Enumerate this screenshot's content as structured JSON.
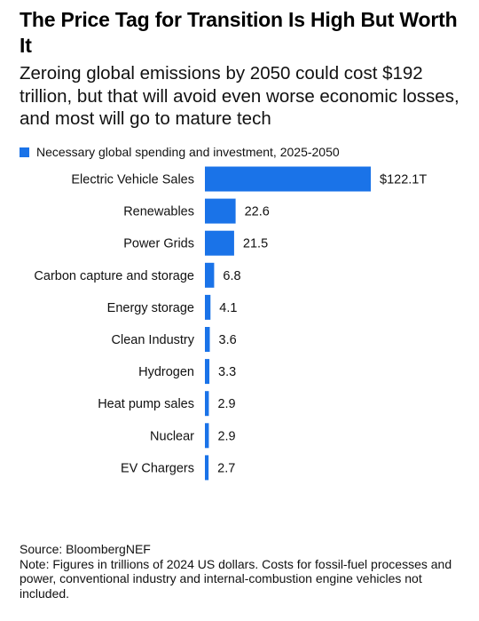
{
  "title": "The Price Tag for Transition Is High But Worth It",
  "subtitle": "Zeroing global emissions by 2050 could cost $192 trillion, but that will avoid even worse economic losses, and most will go to mature tech",
  "legend": {
    "label": "Necessary global spending and investment, 2025-2050",
    "color": "#1a73e8"
  },
  "colors": {
    "bar": "#1a73e8"
  },
  "chart_data": {
    "type": "bar",
    "orientation": "horizontal",
    "categories": [
      "Electric Vehicle Sales",
      "Renewables",
      "Power Grids",
      "Carbon capture and storage",
      "Energy storage",
      "Clean Industry",
      "Hydrogen",
      "Heat pump sales",
      "Nuclear",
      "EV Chargers"
    ],
    "values": [
      122.1,
      22.6,
      21.5,
      6.8,
      4.1,
      3.6,
      3.3,
      2.9,
      2.9,
      2.7
    ],
    "value_labels": [
      "$122.1T",
      "22.6",
      "21.5",
      "6.8",
      "4.1",
      "3.6",
      "3.3",
      "2.9",
      "2.9",
      "2.7"
    ],
    "series": [
      {
        "name": "Necessary global spending and investment, 2025-2050",
        "values": [
          122.1,
          22.6,
          21.5,
          6.8,
          4.1,
          3.6,
          3.3,
          2.9,
          2.9,
          2.7
        ]
      }
    ],
    "xlim": [
      0,
      122.1
    ],
    "grid": false,
    "legend_position": "top-left"
  },
  "footer": {
    "source": "Source: BloombergNEF",
    "note": "Note: Figures in trillions of 2024 US dollars. Costs for fossil-fuel processes and power, conventional industry and internal-combustion engine vehicles not included."
  }
}
